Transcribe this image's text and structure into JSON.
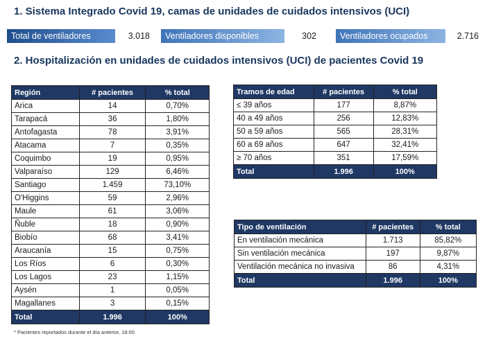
{
  "section1": {
    "title": "1. Sistema Integrado Covid 19, camas de unidades de cuidados intensivos (UCI)",
    "stats": [
      {
        "label": "Total de ventiladores",
        "value": "3.018"
      },
      {
        "label": "Ventiladores disponibles",
        "value": "302"
      },
      {
        "label": "Ventiladores ocupados",
        "value": "2.716"
      }
    ]
  },
  "section2": {
    "title": "2. Hospitalización en unidades de cuidados intensivos (UCI) de pacientes Covid 19"
  },
  "region_table": {
    "headers": [
      "Región",
      "# pacientes",
      "% total"
    ],
    "rows": [
      [
        "Arica",
        "14",
        "0,70%"
      ],
      [
        "Tarapacá",
        "36",
        "1,80%"
      ],
      [
        "Antofagasta",
        "78",
        "3,91%"
      ],
      [
        "Atacama",
        "7",
        "0,35%"
      ],
      [
        "Coquimbo",
        "19",
        "0,95%"
      ],
      [
        "Valparaíso",
        "129",
        "6,46%"
      ],
      [
        "Santiago",
        "1.459",
        "73,10%"
      ],
      [
        "O'Higgins",
        "59",
        "2,96%"
      ],
      [
        "Maule",
        "61",
        "3,06%"
      ],
      [
        "Ñuble",
        "18",
        "0,90%"
      ],
      [
        "Biobío",
        "68",
        "3,41%"
      ],
      [
        "Araucanía",
        "15",
        "0,75%"
      ],
      [
        "Los Ríos",
        "6",
        "0,30%"
      ],
      [
        "Los Lagos",
        "23",
        "1,15%"
      ],
      [
        "Aysén",
        "1",
        "0,05%"
      ],
      [
        "Magallanes",
        "3",
        "0,15%"
      ]
    ],
    "total": [
      "Total",
      "1.996",
      "100%"
    ]
  },
  "age_table": {
    "headers": [
      "Tramos de edad",
      "# pacientes",
      "% total"
    ],
    "rows": [
      [
        "≤ 39 años",
        "177",
        "8,87%"
      ],
      [
        "40 a 49 años",
        "256",
        "12,83%"
      ],
      [
        "50 a 59 años",
        "565",
        "28,31%"
      ],
      [
        "60 a 69 años",
        "647",
        "32,41%"
      ],
      [
        "≥ 70 años",
        "351",
        "17,59%"
      ]
    ],
    "total": [
      "Total",
      "1.996",
      "100%"
    ]
  },
  "vent_table": {
    "headers": [
      "Tipo de ventilación",
      "# pacientes",
      "% total"
    ],
    "rows": [
      [
        "En ventilación mecánica",
        "1.713",
        "85,82%"
      ],
      [
        "Sin ventilación mecánica",
        "197",
        "9,87%"
      ],
      [
        "Ventilación mecánica no invasiva",
        "86",
        "4,31%"
      ]
    ],
    "total": [
      "Total",
      "1.996",
      "100%"
    ]
  },
  "footnote": "* Pacientes reportados durante el día anterior, 18:00",
  "colors": {
    "header_navy": "#1f3864",
    "stat_gradient_dark": "#1f4e8c",
    "stat_gradient_light": "#6f9fd8",
    "title_blue": "#17365d"
  }
}
